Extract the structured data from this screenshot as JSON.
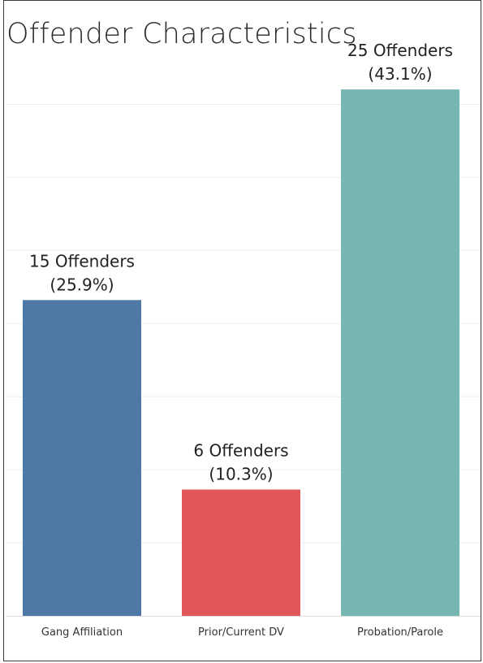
{
  "chart_data": {
    "type": "bar",
    "title": "Offender Characteristics",
    "categories": [
      "Gang Affiliation",
      "Prior/Current DV",
      "Probation/Parole"
    ],
    "values": [
      15,
      6,
      25
    ],
    "percent_labels": [
      "(25.9%)",
      "(10.3%)",
      "(43.1%)"
    ],
    "count_labels": [
      "15 Offenders",
      "6 Offenders",
      "25 Offenders"
    ],
    "colors": [
      "#4e79a7",
      "#e15759",
      "#76b7b2"
    ],
    "xlabel": "",
    "ylabel": "",
    "ylim": [
      0,
      35
    ],
    "grid": true,
    "legend": "none"
  }
}
